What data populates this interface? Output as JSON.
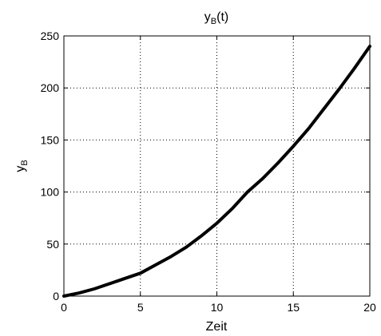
{
  "chart_data": {
    "type": "line",
    "title": "y_B(t)",
    "title_parts": {
      "main": "y",
      "sub": "B",
      "tail": "(t)"
    },
    "xlabel": "Zeit",
    "ylabel": "y_B",
    "ylabel_parts": {
      "main": "y",
      "sub": "B"
    },
    "xlim": [
      0,
      20
    ],
    "ylim": [
      0,
      250
    ],
    "x_ticks": [
      0,
      5,
      10,
      15,
      20
    ],
    "y_ticks": [
      0,
      50,
      100,
      150,
      200,
      250
    ],
    "grid": true,
    "series": [
      {
        "color": "#000000",
        "x": [
          0,
          1,
          2,
          3,
          4,
          5,
          6,
          7,
          8,
          9,
          10,
          11,
          12,
          13,
          14,
          15,
          16,
          17,
          18,
          19,
          20
        ],
        "y": [
          0,
          3,
          7,
          12,
          17,
          22,
          30,
          38,
          47,
          58,
          70,
          84,
          100,
          113,
          128,
          144,
          161,
          180,
          199,
          219,
          240
        ]
      }
    ]
  }
}
